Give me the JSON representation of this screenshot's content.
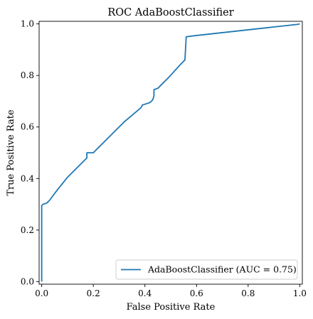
{
  "chart_data": {
    "type": "line",
    "title": "ROC AdaBoostClassifier",
    "xlabel": "False Positive Rate",
    "ylabel": "True Positive Rate",
    "xlim": [
      -0.01,
      1.01
    ],
    "ylim": [
      -0.01,
      1.01
    ],
    "x_ticks": [
      0.0,
      0.2,
      0.4,
      0.6,
      0.8,
      1.0
    ],
    "x_tick_labels": [
      "0.0",
      "0.2",
      "0.4",
      "0.6",
      "0.8",
      "1.0"
    ],
    "y_ticks": [
      0.0,
      0.2,
      0.4,
      0.6,
      0.8,
      1.0
    ],
    "y_tick_labels": [
      "0.0",
      "0.2",
      "0.4",
      "0.6",
      "0.8",
      "1.0"
    ],
    "legend_position": "lower-right",
    "grid": false,
    "series": [
      {
        "name": "AdaBoostClassifier (AUC = 0.75)",
        "color": "#1f77b4",
        "x": [
          0.0,
          0.0,
          0.0,
          0.005,
          0.02,
          0.03,
          0.06,
          0.1,
          0.14,
          0.175,
          0.175,
          0.185,
          0.2,
          0.26,
          0.32,
          0.385,
          0.39,
          0.405,
          0.42,
          0.43,
          0.435,
          0.435,
          0.45,
          0.49,
          0.54,
          0.555,
          0.56,
          0.6,
          0.99,
          1.0
        ],
        "y": [
          0.0,
          0.13,
          0.295,
          0.3,
          0.305,
          0.315,
          0.355,
          0.405,
          0.445,
          0.48,
          0.5,
          0.5,
          0.5,
          0.56,
          0.62,
          0.675,
          0.685,
          0.69,
          0.695,
          0.705,
          0.72,
          0.745,
          0.75,
          0.79,
          0.845,
          0.86,
          0.95,
          0.955,
          0.998,
          1.0
        ]
      }
    ]
  }
}
